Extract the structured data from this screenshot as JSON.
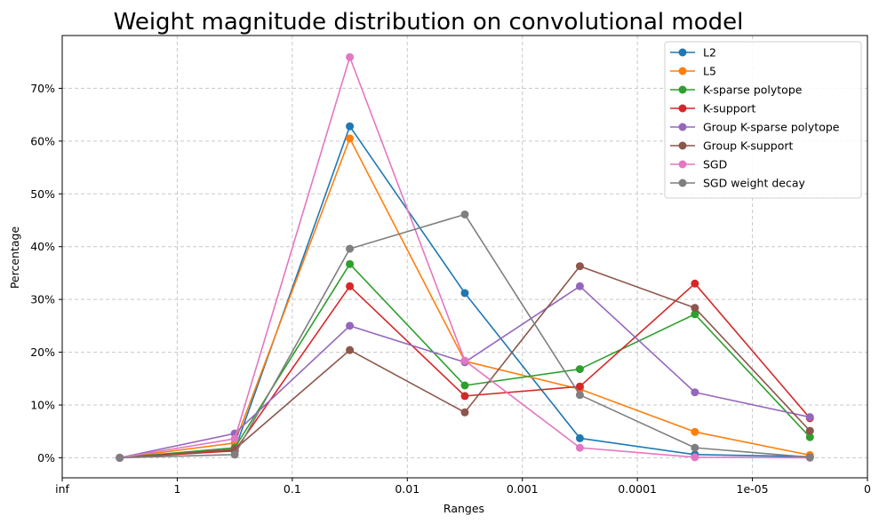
{
  "chart_data": {
    "type": "line",
    "title": "Weight magnitude distribution on convolutional model",
    "xlabel": "Ranges",
    "ylabel": "Percentage",
    "x_tick_labels": [
      "inf",
      "1",
      "0.1",
      "0.01",
      "0.001",
      "0.0001",
      "1e-05",
      "0"
    ],
    "x_tick_positions": [
      0,
      1,
      2,
      3,
      4,
      5,
      6,
      7
    ],
    "x": [
      0.5,
      1.5,
      2.5,
      3.5,
      4.5,
      5.5,
      6.5
    ],
    "xlim": [
      0,
      7
    ],
    "y_tick_labels": [
      "0%",
      "10%",
      "20%",
      "30%",
      "40%",
      "50%",
      "60%",
      "70%"
    ],
    "y_tick_values": [
      0,
      10,
      20,
      30,
      40,
      50,
      60,
      70
    ],
    "ylim": [
      -3.8,
      80
    ],
    "grid": true,
    "legend_position": "top-right",
    "series": [
      {
        "name": "L2",
        "color": "#1f77b4",
        "values": [
          0,
          1.5,
          62.8,
          31.2,
          3.7,
          0.6,
          0.2
        ]
      },
      {
        "name": "L5",
        "color": "#ff7f0e",
        "values": [
          0,
          2.8,
          60.5,
          18.3,
          13.0,
          4.9,
          0.5
        ]
      },
      {
        "name": "K-sparse polytope",
        "color": "#2ca02c",
        "values": [
          0,
          1.9,
          36.7,
          13.7,
          16.8,
          27.2,
          3.9
        ]
      },
      {
        "name": "K-support",
        "color": "#d62728",
        "values": [
          0,
          1.3,
          32.5,
          11.7,
          13.5,
          33.0,
          7.5
        ]
      },
      {
        "name": "Group K-sparse polytope",
        "color": "#9467bd",
        "values": [
          0,
          4.6,
          25.0,
          18.1,
          32.5,
          12.4,
          7.7
        ]
      },
      {
        "name": "Group K-support",
        "color": "#8c564b",
        "values": [
          0,
          1.6,
          20.4,
          8.6,
          36.3,
          28.4,
          5.1
        ]
      },
      {
        "name": "SGD",
        "color": "#e377c2",
        "values": [
          0,
          3.6,
          75.9,
          18.4,
          1.9,
          0.1,
          0.0
        ]
      },
      {
        "name": "SGD weight decay",
        "color": "#7f7f7f",
        "values": [
          0,
          0.6,
          39.6,
          46.1,
          11.9,
          1.9,
          0.1
        ]
      }
    ]
  }
}
